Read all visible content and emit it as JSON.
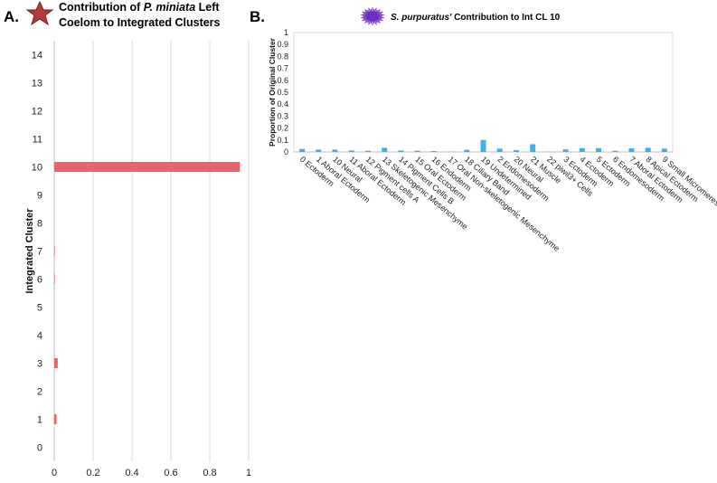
{
  "panels": {
    "a_letter": "A.",
    "b_letter": "B."
  },
  "chart_data": [
    {
      "type": "bar",
      "orientation": "horizontal",
      "title_line1_prefix": "Contribution of ",
      "title_line1_italic": "P. miniata",
      "title_line1_suffix": " Left",
      "title_line2": "Coelom to Integrated Clusters",
      "title_icon": "starfish-icon",
      "xlabel": "",
      "ylabel": "Integrated Cluster",
      "categories": [
        "0",
        "1",
        "2",
        "3",
        "4",
        "5",
        "6",
        "7",
        "8",
        "9",
        "10",
        "11",
        "12",
        "13",
        "14"
      ],
      "values": [
        0,
        0.012,
        0,
        0.018,
        0,
        0,
        0.003,
        0.003,
        0,
        0,
        0.955,
        0,
        0,
        0,
        0
      ],
      "xlim": [
        0,
        1
      ],
      "xticks": [
        "0",
        "0.2",
        "0.4",
        "0.6",
        "0.8",
        "1"
      ],
      "grid": "vertical",
      "bar_color": "#e8636c"
    },
    {
      "type": "bar",
      "title_italic": "S. purpuratus'",
      "title_suffix": " Contribution to Int CL 10",
      "title_icon": "sea-urchin-icon",
      "xlabel": "",
      "ylabel": "Proportion of Original Cluster",
      "categories": [
        "0 Ectoderm",
        "1 Aboral Ectoderm",
        "10 Neural",
        "11 Aboral Ectoderm",
        "12 Pigment cells A",
        "13 Skeletogenic Mesenchyme",
        "14 Pigment Cells B",
        "15 Oral Ectoderm",
        "16 Endoderm",
        "17 Oral Non-skeletogenic Mesenchyme",
        "18 Ciliary Band",
        "19 Undetermined",
        "2 Endomesoderm",
        "20 Neural",
        "21 Muscle",
        "22 piwil3+ Cells",
        "3 Ectoderm",
        "4 Ectoderm",
        "5 Ectoderm",
        "6 Endomesoderm",
        "7 Aboral Ectoderm",
        "8 Apical Ectoderm",
        "9 Small Micromeres"
      ],
      "values": [
        0.025,
        0.02,
        0.02,
        0.012,
        0.01,
        0.035,
        0.012,
        0.01,
        0.008,
        0.002,
        0.018,
        0.1,
        0.028,
        0.015,
        0.065,
        0.002,
        0.022,
        0.032,
        0.032,
        0.01,
        0.03,
        0.035,
        0.028
      ],
      "ylim": [
        0,
        1
      ],
      "yticks": [
        "0",
        "0.1",
        "0.2",
        "0.3",
        "0.4",
        "0.5",
        "0.6",
        "0.7",
        "0.8",
        "0.9",
        "1"
      ],
      "grid": "none",
      "bar_color": "#3fb0e6"
    }
  ]
}
